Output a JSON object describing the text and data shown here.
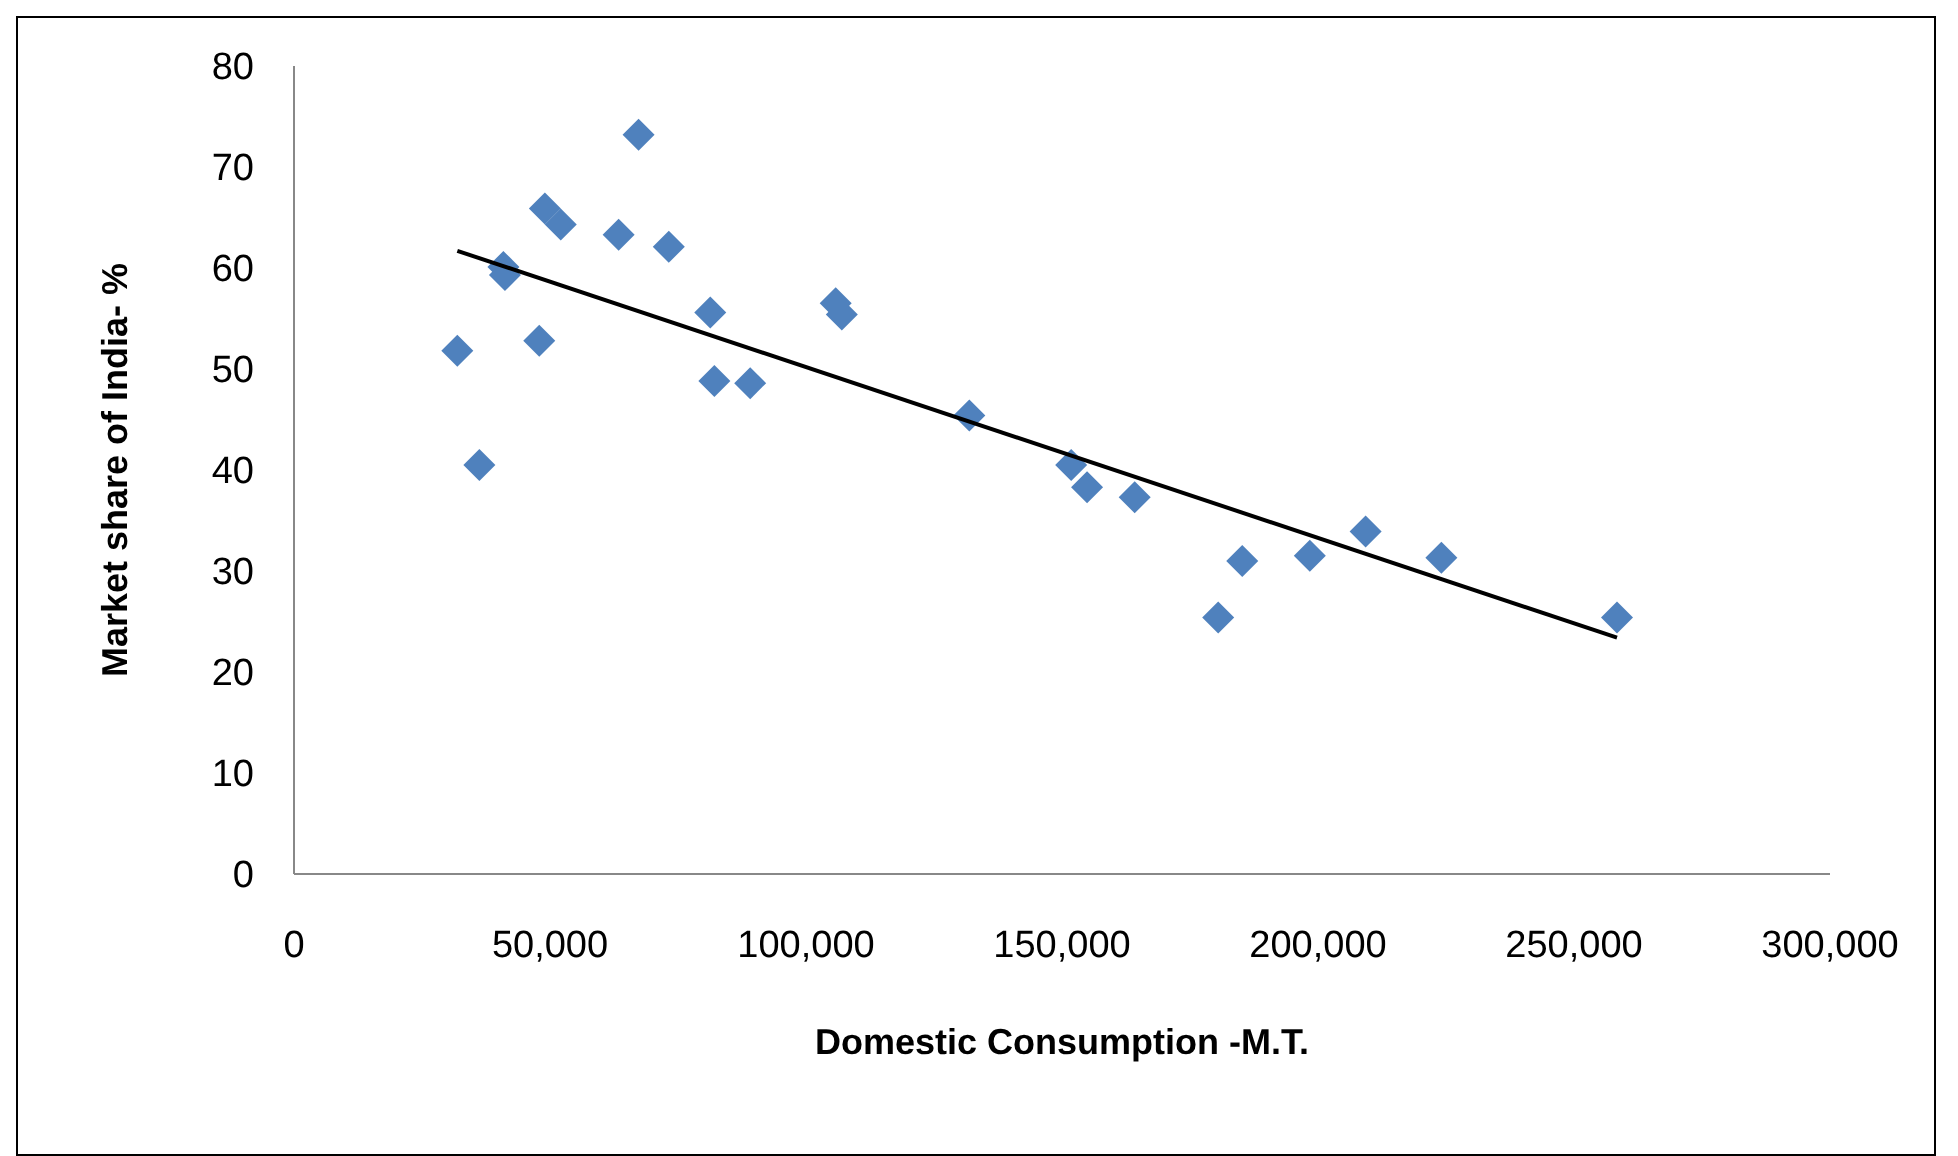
{
  "chart_data": {
    "type": "scatter",
    "xlabel": "Domestic Consumption -M.T.",
    "ylabel": "Market share of India- %",
    "xlim": [
      0,
      300000
    ],
    "xticks": [
      {
        "value": 0,
        "label": "0"
      },
      {
        "value": 50000,
        "label": "50,000"
      },
      {
        "value": 100000,
        "label": "100,000"
      },
      {
        "value": 150000,
        "label": "150,000"
      },
      {
        "value": 200000,
        "label": "200,000"
      },
      {
        "value": 250000,
        "label": "250,000"
      },
      {
        "value": 300000,
        "label": "300,000"
      }
    ],
    "ylim": [
      0,
      80
    ],
    "yticks": [
      0,
      10,
      20,
      30,
      40,
      50,
      60,
      70,
      80
    ],
    "series": [
      {
        "color": "#4f81bd",
        "marker": "diamond",
        "x": [
          31900,
          36200,
          40900,
          41200,
          47900,
          49000,
          52100,
          63400,
          67300,
          73200,
          81300,
          82100,
          89100,
          105800,
          107000,
          131900,
          151800,
          154900,
          164200,
          180500,
          185200,
          198400,
          209300,
          224100,
          258400
        ],
        "values": [
          51.8,
          40.5,
          60.1,
          59.3,
          52.8,
          65.9,
          64.3,
          63.3,
          73.2,
          62.1,
          55.6,
          48.8,
          48.6,
          56.5,
          55.4,
          45.4,
          40.5,
          38.3,
          37.3,
          25.4,
          31.0,
          31.5,
          33.9,
          31.3,
          25.4
        ]
      },
      {
        "type": "line",
        "color": "#000000",
        "marker": "none",
        "line_style": "solid",
        "x": [
          31900,
          258400
        ],
        "values": [
          61.7,
          23.4
        ]
      }
    ]
  }
}
